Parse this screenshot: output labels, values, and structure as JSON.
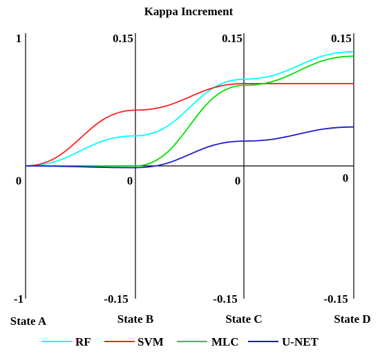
{
  "chart_data": {
    "type": "line",
    "title": "Kappa Increment",
    "categories": [
      "State A",
      "State B",
      "State C",
      "State D"
    ],
    "axes": [
      {
        "top": "1",
        "zero": "0",
        "bottom": "-1"
      },
      {
        "top": "0.15",
        "zero": "0",
        "bottom": "-0.15"
      },
      {
        "top": "0.15",
        "zero": "0",
        "bottom": "-0.15"
      },
      {
        "top": "0.15",
        "zero": "0",
        "bottom": "-0.15"
      }
    ],
    "ylim": [
      -0.15,
      0.15
    ],
    "series": [
      {
        "name": "RF",
        "color": "#00ffff",
        "values": [
          0,
          0.034,
          0.098,
          0.129
        ]
      },
      {
        "name": "SVM",
        "color": "#ff2020",
        "values": [
          0,
          0.063,
          0.093,
          0.093
        ]
      },
      {
        "name": "MLC",
        "color": "#00e000",
        "values": [
          0,
          0.0,
          0.091,
          0.124
        ]
      },
      {
        "name": "U-NET",
        "color": "#1a1acd",
        "values": [
          0,
          -0.002,
          0.028,
          0.044
        ]
      }
    ],
    "legend": "bottom"
  }
}
